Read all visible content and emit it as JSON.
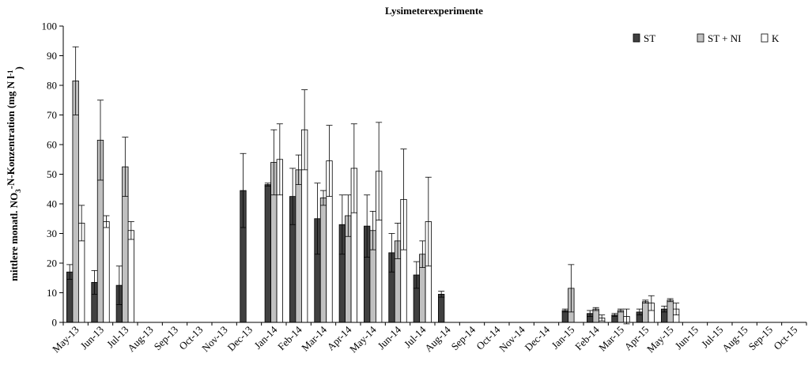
{
  "chart_data": {
    "type": "bar",
    "title": "Lysimeterexperimente",
    "ylabel_parts": [
      "mittlere monatl. NO",
      "3",
      "-N-Konzentration (mg N l",
      "-1",
      ")"
    ],
    "xlabel": "",
    "ylim": [
      0,
      100
    ],
    "yticks": [
      0,
      10,
      20,
      30,
      40,
      50,
      60,
      70,
      80,
      90,
      100
    ],
    "legend_position": "top-right",
    "grid": false,
    "categories": [
      "May-13",
      "Jun-13",
      "Jul-13",
      "Aug-13",
      "Sep-13",
      "Oct-13",
      "Nov-13",
      "Dec-13",
      "Jan-14",
      "Feb-14",
      "Mar-14",
      "Apr-14",
      "May-14",
      "Jun-14",
      "Jul-14",
      "Aug-14",
      "Sep-14",
      "Oct-14",
      "Nov-14",
      "Dec-14",
      "Jan-15",
      "Feb-14",
      "Mar-15",
      "Apr-15",
      "May-15",
      "Jun-15",
      "Jul-15",
      "Aug-15",
      "Sep-15",
      "Oct-15"
    ],
    "series": [
      {
        "name": "ST",
        "color": "#404040",
        "values": [
          17,
          13.5,
          12.5,
          0,
          0,
          0,
          0,
          44.5,
          46.5,
          42.5,
          35,
          33,
          32.5,
          23.5,
          16,
          9.5,
          0,
          0,
          0,
          0,
          4,
          3,
          2.5,
          3.5,
          4.5,
          0,
          0,
          0,
          0,
          0
        ],
        "errors": [
          2.5,
          4,
          6.5,
          0,
          0,
          0,
          0,
          12.5,
          0.5,
          9.5,
          12,
          10,
          10.5,
          6.5,
          4.5,
          1,
          0,
          0,
          0,
          0,
          0.5,
          1,
          0.5,
          1,
          1,
          0,
          0,
          0,
          0,
          0
        ]
      },
      {
        "name": "ST + NI",
        "color": "#c0c0c0",
        "values": [
          81.5,
          61.5,
          52.5,
          0,
          0,
          0,
          0,
          0,
          54,
          51.5,
          42,
          36,
          31,
          27.5,
          23,
          0,
          0,
          0,
          0,
          0,
          11.5,
          4.5,
          4,
          7,
          7.5,
          0,
          0,
          0,
          0,
          0
        ],
        "errors": [
          11.5,
          13.5,
          10,
          0,
          0,
          0,
          0,
          0,
          11,
          5,
          2.5,
          7,
          6.5,
          6,
          4.5,
          0,
          0,
          0,
          0,
          0,
          8,
          0.5,
          0.5,
          0.5,
          0.5,
          0,
          0,
          0,
          0,
          0
        ]
      },
      {
        "name": "K",
        "color": "#ffffff",
        "values": [
          33.5,
          34,
          31,
          0,
          0,
          0,
          0,
          0,
          55,
          65,
          54.5,
          52,
          51,
          41.5,
          34,
          0,
          0,
          0,
          0,
          0,
          0,
          1.5,
          2,
          6.5,
          4.5,
          0,
          0,
          0,
          0,
          0
        ],
        "errors": [
          6,
          2,
          3,
          0,
          0,
          0,
          0,
          0,
          12,
          13.5,
          12,
          15,
          16.5,
          17,
          15,
          0,
          0,
          0,
          0,
          0,
          0,
          1,
          2.5,
          2.5,
          2,
          0,
          0,
          0,
          0,
          0
        ]
      }
    ]
  }
}
